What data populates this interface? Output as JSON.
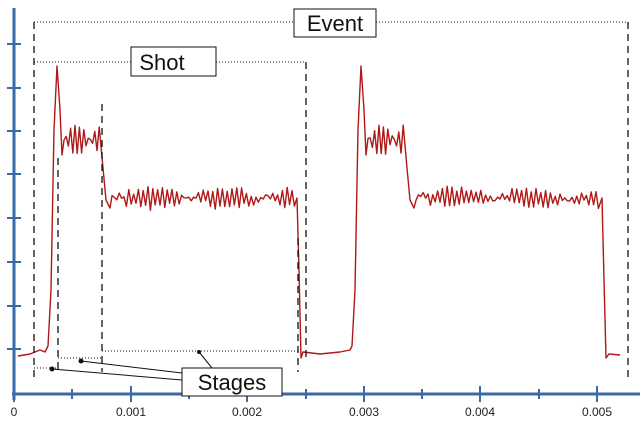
{
  "labels": {
    "event": "Event",
    "shot": "Shot",
    "stages": "Stages"
  },
  "x_axis": {
    "ticks": [
      "0",
      "0.001",
      "0.002",
      "0.003",
      "0.004",
      "0.005"
    ]
  },
  "colors": {
    "signal": "#b01818",
    "axis": "#3a6aa8",
    "annotation": "#111111"
  }
}
